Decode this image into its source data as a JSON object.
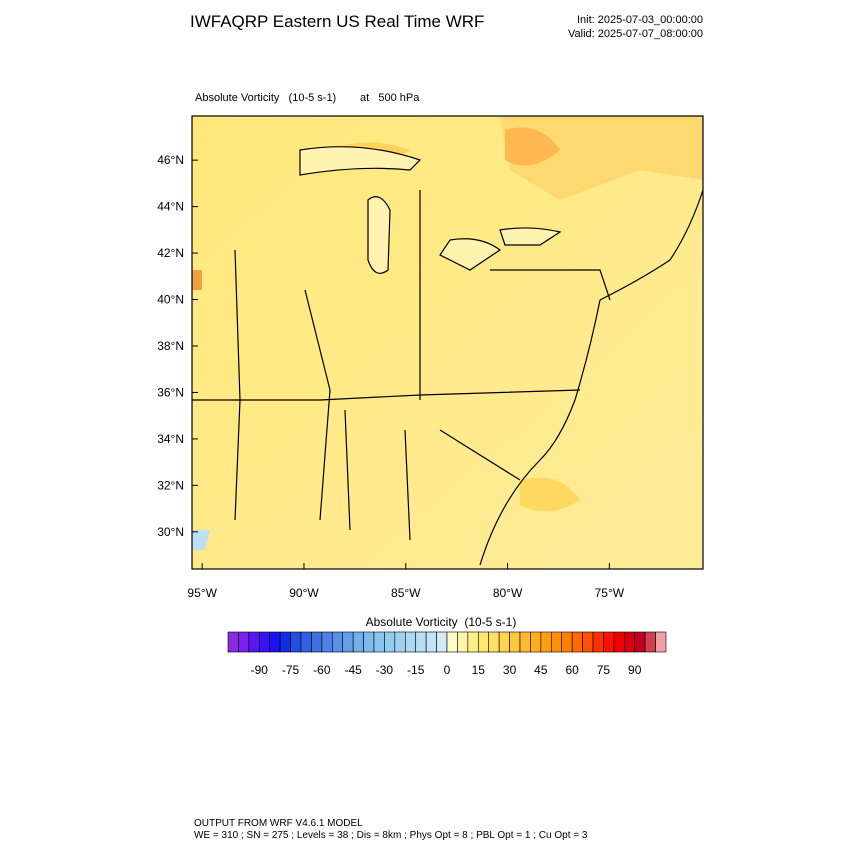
{
  "header": {
    "title": "IWFAQRP Eastern US Real Time WRF",
    "init": "Init: 2025-07-03_00:00:00",
    "valid": "Valid: 2025-07-07_08:00:00"
  },
  "map": {
    "field": "Absolute Vorticity   (10-5 s-1)",
    "level": "at   500 hPa",
    "latlim": [
      28.4,
      47.9
    ],
    "lonlim": [
      -95.5,
      -70.4
    ],
    "lat_ticks": [
      {
        "value": 46,
        "label": "46°N"
      },
      {
        "value": 44,
        "label": "44°N"
      },
      {
        "value": 42,
        "label": "42°N"
      },
      {
        "value": 40,
        "label": "40°N"
      },
      {
        "value": 38,
        "label": "38°N"
      },
      {
        "value": 36,
        "label": "36°N"
      },
      {
        "value": 34,
        "label": "34°N"
      },
      {
        "value": 32,
        "label": "32°N"
      },
      {
        "value": 30,
        "label": "30°N"
      }
    ],
    "lon_ticks": [
      {
        "value": -95,
        "label": "95°W"
      },
      {
        "value": -90,
        "label": "90°W"
      },
      {
        "value": -85,
        "label": "85°W"
      },
      {
        "value": -80,
        "label": "80°W"
      },
      {
        "value": -75,
        "label": "75°W"
      }
    ]
  },
  "colorbar": {
    "title": "Absolute Vorticity  (10-5 s-1)",
    "range": [
      -105,
      105
    ],
    "levels": [
      -90,
      -75,
      -60,
      -45,
      -30,
      -15,
      0,
      15,
      30,
      45,
      60,
      75,
      90
    ],
    "colors": [
      "#8a2be2",
      "#7a1ff0",
      "#5a18f0",
      "#3a12f5",
      "#1a10f0",
      "#1030e0",
      "#2050e0",
      "#3060e0",
      "#4070e0",
      "#4f80e6",
      "#5a90e8",
      "#64a0ea",
      "#70b0ec",
      "#7cbcee",
      "#88c6ef",
      "#94ccef",
      "#a0d2f0",
      "#acd8f2",
      "#b8def4",
      "#c4e4f6",
      "#d0eaf8",
      "#fffbc8",
      "#fff5a8",
      "#ffef88",
      "#ffe870",
      "#ffe060",
      "#ffd550",
      "#ffc840",
      "#ffbb30",
      "#ffad20",
      "#ff9f10",
      "#ff9000",
      "#ff7f00",
      "#ff6a00",
      "#ff5000",
      "#ff3000",
      "#ff1000",
      "#f00000",
      "#d80010",
      "#c00020",
      "#d04050",
      "#f0a0a0"
    ]
  },
  "footer": {
    "line1": "OUTPUT FROM WRF V4.6.1 MODEL",
    "line2": "WE = 310 ; SN = 275 ; Levels = 38 ; Dis = 8km ; Phys Opt = 8 ; PBL Opt = 1 ; Cu Opt = 3"
  }
}
